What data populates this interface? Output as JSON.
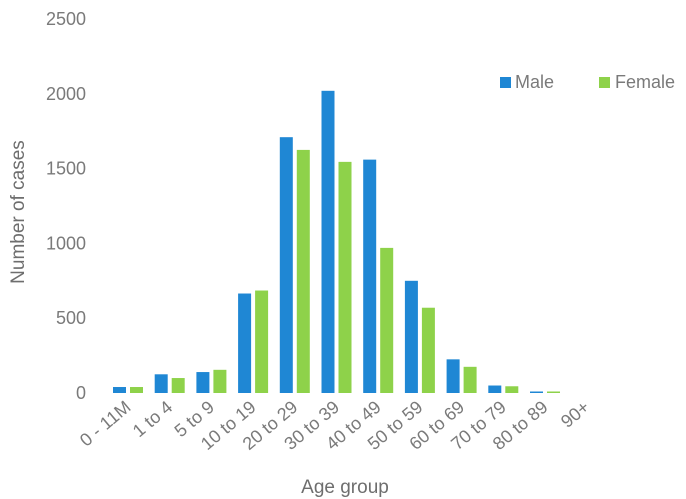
{
  "chart_data": {
    "type": "bar",
    "categories": [
      "0 - 11M",
      "1 to 4",
      "5 to 9",
      "10 to 19",
      "20 to 29",
      "30 to 39",
      "40 to 49",
      "50 to 59",
      "60 to 69",
      "70 to 79",
      "80 to 89",
      "90+"
    ],
    "series": [
      {
        "name": "Male",
        "color": "#1f87d4",
        "values": [
          40,
          125,
          140,
          665,
          1710,
          2020,
          1560,
          750,
          225,
          50,
          10,
          0
        ]
      },
      {
        "name": "Female",
        "color": "#8ed24a",
        "values": [
          40,
          100,
          155,
          685,
          1625,
          1545,
          970,
          570,
          175,
          45,
          10,
          0
        ]
      }
    ],
    "xlabel": "Age group",
    "ylabel": "Number of cases",
    "ylim": [
      0,
      2500
    ],
    "yticks": [
      0,
      500,
      1000,
      1500,
      2000,
      2500
    ],
    "grid": false,
    "legend_position": "top-right"
  }
}
